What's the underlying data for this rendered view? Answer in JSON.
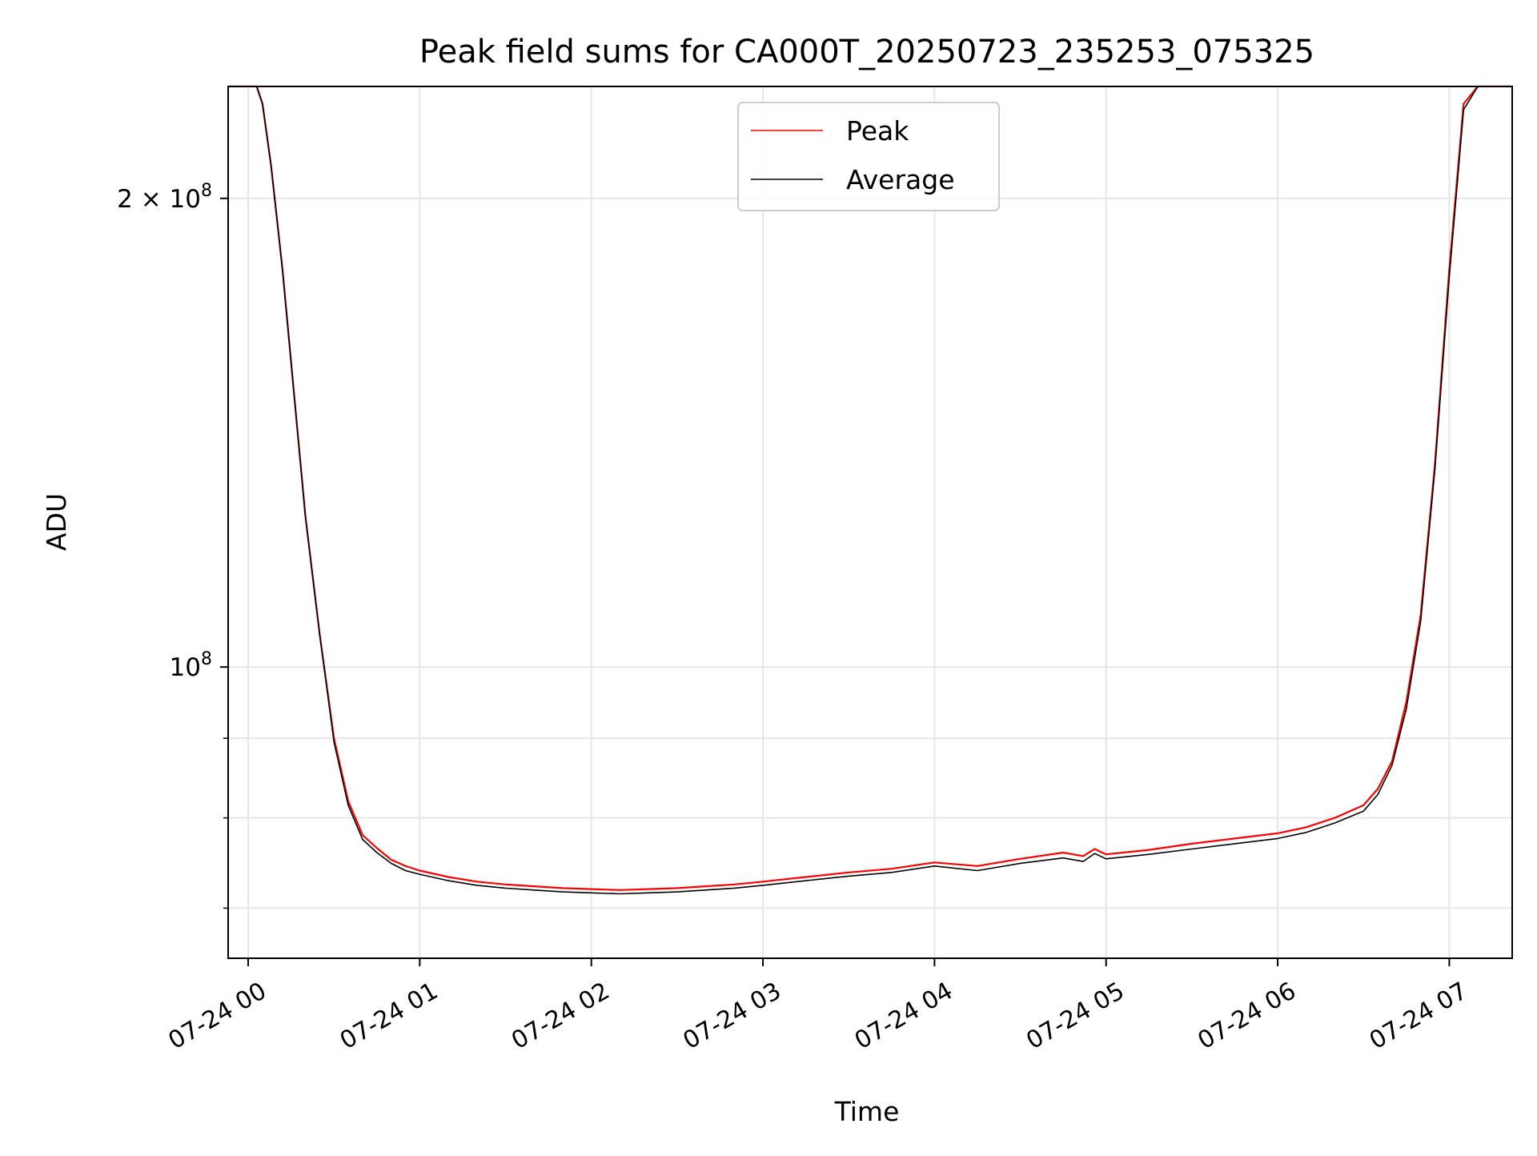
{
  "chart_data": {
    "type": "line",
    "title": "Peak field sums for CA000T_20250723_235253_075325",
    "xlabel": "Time",
    "ylabel": "ADU",
    "y_scale": "log",
    "xlim": [
      "2025-07-23 23:53",
      "2025-07-24 07:22"
    ],
    "ylim": [
      65000000,
      236000000
    ],
    "x_ticks": [
      "07-24 00",
      "07-24 01",
      "07-24 02",
      "07-24 03",
      "07-24 04",
      "07-24 05",
      "07-24 06",
      "07-24 07"
    ],
    "x_tick_values": [
      "2025-07-24 00:00",
      "2025-07-24 01:00",
      "2025-07-24 02:00",
      "2025-07-24 03:00",
      "2025-07-24 04:00",
      "2025-07-24 05:00",
      "2025-07-24 06:00",
      "2025-07-24 07:00"
    ],
    "y_ticks": [
      {
        "value": 200000000,
        "mantissa": "2",
        "times": "×",
        "base": "10",
        "exponent": "8"
      },
      {
        "value": 100000000,
        "mantissa": "",
        "times": "",
        "base": "10",
        "exponent": "8"
      }
    ],
    "y_minor_ticks": [
      70000000,
      80000000,
      90000000
    ],
    "grid": true,
    "legend": {
      "position": "top-center",
      "entries": [
        "Peak",
        "Average"
      ]
    },
    "series": [
      {
        "name": "Peak",
        "color": "#ff0000",
        "x": [
          "2025-07-23 23:53",
          "2025-07-24 00:00",
          "2025-07-24 00:03",
          "2025-07-24 00:05",
          "2025-07-24 00:08",
          "2025-07-24 00:12",
          "2025-07-24 00:16",
          "2025-07-24 00:20",
          "2025-07-24 00:25",
          "2025-07-24 00:30",
          "2025-07-24 00:35",
          "2025-07-24 00:40",
          "2025-07-24 00:45",
          "2025-07-24 00:50",
          "2025-07-24 00:55",
          "2025-07-24 01:00",
          "2025-07-24 01:10",
          "2025-07-24 01:20",
          "2025-07-24 01:30",
          "2025-07-24 01:40",
          "2025-07-24 01:50",
          "2025-07-24 02:00",
          "2025-07-24 02:10",
          "2025-07-24 02:20",
          "2025-07-24 02:30",
          "2025-07-24 02:40",
          "2025-07-24 02:50",
          "2025-07-24 03:00",
          "2025-07-24 03:15",
          "2025-07-24 03:30",
          "2025-07-24 03:45",
          "2025-07-24 04:00",
          "2025-07-24 04:15",
          "2025-07-24 04:30",
          "2025-07-24 04:45",
          "2025-07-24 04:52",
          "2025-07-24 04:56",
          "2025-07-24 05:00",
          "2025-07-24 05:15",
          "2025-07-24 05:30",
          "2025-07-24 05:45",
          "2025-07-24 06:00",
          "2025-07-24 06:10",
          "2025-07-24 06:20",
          "2025-07-24 06:30",
          "2025-07-24 06:35",
          "2025-07-24 06:40",
          "2025-07-24 06:45",
          "2025-07-24 06:50",
          "2025-07-24 06:55",
          "2025-07-24 07:00",
          "2025-07-24 07:05",
          "2025-07-24 07:10",
          "2025-07-24 07:22"
        ],
        "y": [
          236000000,
          236000000,
          236000000,
          230000000,
          210000000,
          180000000,
          150000000,
          125000000,
          105000000,
          90000000,
          82000000,
          78000000,
          76500000,
          75200000,
          74500000,
          74000000,
          73300000,
          72800000,
          72500000,
          72300000,
          72100000,
          72000000,
          71900000,
          72000000,
          72100000,
          72300000,
          72500000,
          72800000,
          73300000,
          73800000,
          74200000,
          74900000,
          74500000,
          75300000,
          76000000,
          75600000,
          76400000,
          75800000,
          76300000,
          77000000,
          77600000,
          78200000,
          78900000,
          80000000,
          81500000,
          83500000,
          87000000,
          95000000,
          108000000,
          135000000,
          180000000,
          230000000,
          236000000,
          236000000
        ]
      },
      {
        "name": "Average",
        "color": "#000000",
        "x": [
          "2025-07-23 23:53",
          "2025-07-24 00:00",
          "2025-07-24 00:03",
          "2025-07-24 00:05",
          "2025-07-24 00:08",
          "2025-07-24 00:12",
          "2025-07-24 00:16",
          "2025-07-24 00:20",
          "2025-07-24 00:25",
          "2025-07-24 00:30",
          "2025-07-24 00:35",
          "2025-07-24 00:40",
          "2025-07-24 00:45",
          "2025-07-24 00:50",
          "2025-07-24 00:55",
          "2025-07-24 01:00",
          "2025-07-24 01:10",
          "2025-07-24 01:20",
          "2025-07-24 01:30",
          "2025-07-24 01:40",
          "2025-07-24 01:50",
          "2025-07-24 02:00",
          "2025-07-24 02:10",
          "2025-07-24 02:20",
          "2025-07-24 02:30",
          "2025-07-24 02:40",
          "2025-07-24 02:50",
          "2025-07-24 03:00",
          "2025-07-24 03:15",
          "2025-07-24 03:30",
          "2025-07-24 03:45",
          "2025-07-24 04:00",
          "2025-07-24 04:15",
          "2025-07-24 04:30",
          "2025-07-24 04:45",
          "2025-07-24 04:52",
          "2025-07-24 04:56",
          "2025-07-24 05:00",
          "2025-07-24 05:15",
          "2025-07-24 05:30",
          "2025-07-24 05:45",
          "2025-07-24 06:00",
          "2025-07-24 06:10",
          "2025-07-24 06:20",
          "2025-07-24 06:30",
          "2025-07-24 06:35",
          "2025-07-24 06:40",
          "2025-07-24 06:45",
          "2025-07-24 06:50",
          "2025-07-24 06:55",
          "2025-07-24 07:00",
          "2025-07-24 07:05",
          "2025-07-24 07:10",
          "2025-07-24 07:22"
        ],
        "y": [
          236000000,
          236000000,
          236000000,
          230000000,
          210000000,
          180000000,
          150000000,
          125000000,
          105000000,
          89500000,
          81500000,
          77500000,
          76000000,
          74800000,
          74000000,
          73600000,
          72900000,
          72400000,
          72100000,
          71900000,
          71700000,
          71600000,
          71500000,
          71600000,
          71700000,
          71900000,
          72100000,
          72400000,
          72900000,
          73400000,
          73800000,
          74500000,
          74000000,
          74800000,
          75400000,
          75000000,
          75900000,
          75300000,
          75800000,
          76400000,
          77000000,
          77600000,
          78300000,
          79400000,
          80800000,
          82800000,
          86500000,
          94000000,
          107000000,
          134000000,
          178000000,
          228000000,
          236000000,
          236000000
        ]
      }
    ]
  }
}
